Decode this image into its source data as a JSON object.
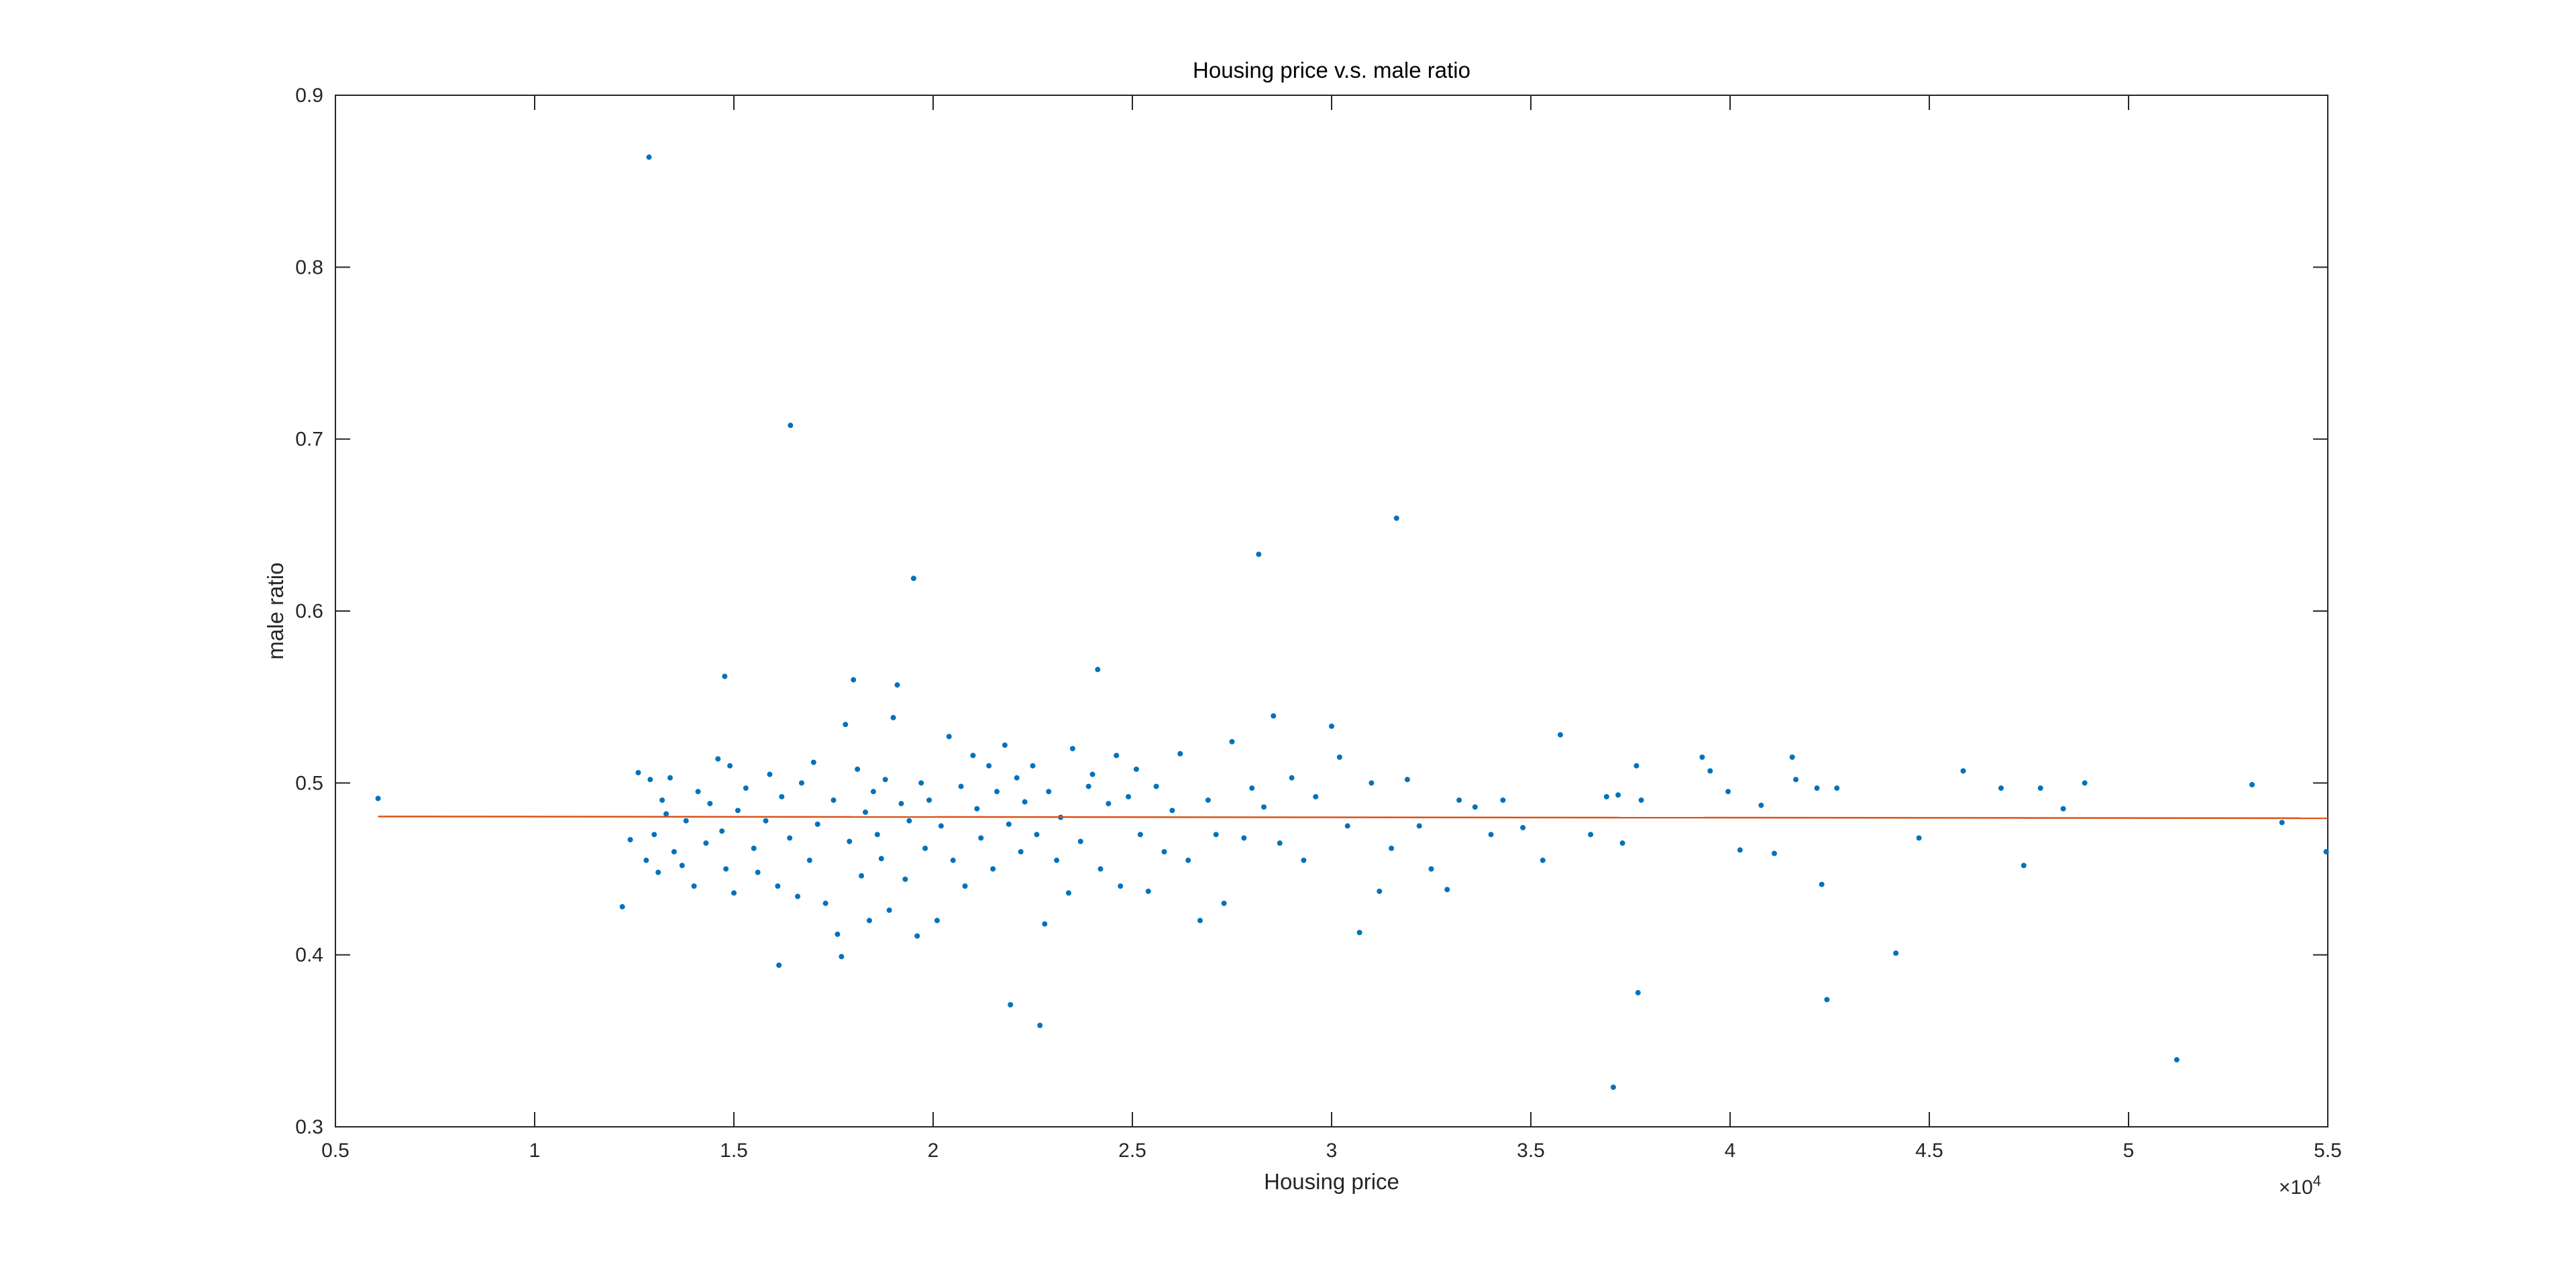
{
  "chart_data": {
    "type": "scatter",
    "title": "Housing price v.s. male ratio",
    "xlabel": "Housing price",
    "ylabel": "male ratio",
    "x_multiplier": {
      "base": "×10",
      "exponent": "4"
    },
    "xlim": [
      5000,
      55000
    ],
    "ylim": [
      0.3,
      0.9
    ],
    "xticks": [
      {
        "value": 5000,
        "label": "0.5"
      },
      {
        "value": 10000,
        "label": "1"
      },
      {
        "value": 15000,
        "label": "1.5"
      },
      {
        "value": 20000,
        "label": "2"
      },
      {
        "value": 25000,
        "label": "2.5"
      },
      {
        "value": 30000,
        "label": "3"
      },
      {
        "value": 35000,
        "label": "3.5"
      },
      {
        "value": 40000,
        "label": "4"
      },
      {
        "value": 45000,
        "label": "4.5"
      },
      {
        "value": 50000,
        "label": "5"
      },
      {
        "value": 55000,
        "label": "5.5"
      }
    ],
    "yticks": [
      0.3,
      0.4,
      0.5,
      0.6,
      0.7,
      0.8,
      0.9
    ],
    "scatter": {
      "color": "#0072bd",
      "x": [
        6070,
        12870,
        16420,
        19510,
        28170,
        31630,
        14770,
        24130,
        16130,
        21940,
        22680,
        37070,
        37690,
        42430,
        44160,
        51210,
        35740,
        28540,
        53100,
        53850,
        54960,
        45850,
        39300,
        39500,
        39950,
        40250,
        40780,
        41110,
        41560,
        41650,
        42180,
        42300,
        42680,
        44740,
        46800,
        47370,
        47790,
        48360,
        48900,
        37190,
        37650,
        37770,
        12200,
        12400,
        12600,
        12800,
        12900,
        13000,
        13100,
        13200,
        13300,
        13400,
        13500,
        13700,
        13800,
        14000,
        14100,
        14300,
        14400,
        14600,
        14700,
        14800,
        14900,
        15000,
        15100,
        15300,
        15500,
        15600,
        15800,
        15900,
        16100,
        16200,
        16400,
        16600,
        16700,
        16900,
        17000,
        17100,
        17300,
        17500,
        17600,
        17700,
        17800,
        17900,
        18000,
        18100,
        18200,
        18300,
        18400,
        18500,
        18600,
        18700,
        18800,
        18900,
        19000,
        19100,
        19200,
        19300,
        19400,
        19600,
        19700,
        19800,
        19900,
        20100,
        20200,
        20400,
        20500,
        20700,
        20800,
        21000,
        21100,
        21200,
        21400,
        21500,
        21600,
        21800,
        21900,
        22100,
        22200,
        22300,
        22500,
        22600,
        22800,
        22900,
        23100,
        23200,
        23400,
        23500,
        23700,
        23900,
        24000,
        24200,
        24400,
        24600,
        24700,
        24900,
        25100,
        25200,
        25400,
        25600,
        25800,
        26000,
        26200,
        26400,
        26700,
        26900,
        27100,
        27300,
        27500,
        27800,
        28000,
        28300,
        28700,
        29000,
        29300,
        29600,
        30000,
        30200,
        30400,
        30700,
        31000,
        31200,
        31500,
        31900,
        32200,
        32500,
        32900,
        33200,
        33600,
        34000,
        34300,
        34800,
        35300,
        36500,
        36900,
        37300
      ],
      "y": [
        0.491,
        0.864,
        0.708,
        0.619,
        0.633,
        0.654,
        0.562,
        0.566,
        0.394,
        0.371,
        0.359,
        0.323,
        0.378,
        0.374,
        0.401,
        0.339,
        0.528,
        0.539,
        0.499,
        0.477,
        0.46,
        0.507,
        0.515,
        0.507,
        0.495,
        0.461,
        0.487,
        0.459,
        0.515,
        0.502,
        0.497,
        0.441,
        0.497,
        0.468,
        0.497,
        0.452,
        0.497,
        0.485,
        0.5,
        0.493,
        0.51,
        0.49,
        0.428,
        0.467,
        0.506,
        0.455,
        0.502,
        0.47,
        0.448,
        0.49,
        0.482,
        0.503,
        0.46,
        0.452,
        0.478,
        0.44,
        0.495,
        0.465,
        0.488,
        0.514,
        0.472,
        0.45,
        0.51,
        0.436,
        0.484,
        0.497,
        0.462,
        0.448,
        0.478,
        0.505,
        0.44,
        0.492,
        0.468,
        0.434,
        0.5,
        0.455,
        0.512,
        0.476,
        0.43,
        0.49,
        0.412,
        0.399,
        0.534,
        0.466,
        0.56,
        0.508,
        0.446,
        0.483,
        0.42,
        0.495,
        0.47,
        0.456,
        0.502,
        0.426,
        0.538,
        0.557,
        0.488,
        0.444,
        0.478,
        0.411,
        0.5,
        0.462,
        0.49,
        0.42,
        0.475,
        0.527,
        0.455,
        0.498,
        0.44,
        0.516,
        0.485,
        0.468,
        0.51,
        0.45,
        0.495,
        0.522,
        0.476,
        0.503,
        0.46,
        0.489,
        0.51,
        0.47,
        0.418,
        0.495,
        0.455,
        0.48,
        0.436,
        0.52,
        0.466,
        0.498,
        0.505,
        0.45,
        0.488,
        0.516,
        0.44,
        0.492,
        0.508,
        0.47,
        0.437,
        0.498,
        0.46,
        0.484,
        0.517,
        0.455,
        0.42,
        0.49,
        0.47,
        0.43,
        0.524,
        0.468,
        0.497,
        0.486,
        0.465,
        0.503,
        0.455,
        0.492,
        0.533,
        0.515,
        0.475,
        0.413,
        0.5,
        0.437,
        0.462,
        0.502,
        0.475,
        0.45,
        0.438,
        0.49,
        0.486,
        0.47,
        0.49,
        0.474,
        0.455,
        0.47,
        0.492,
        0.465
      ]
    },
    "fit_line": {
      "color": "#d95319",
      "x": [
        6070,
        55000
      ],
      "y": [
        0.4805,
        0.4795
      ]
    }
  }
}
